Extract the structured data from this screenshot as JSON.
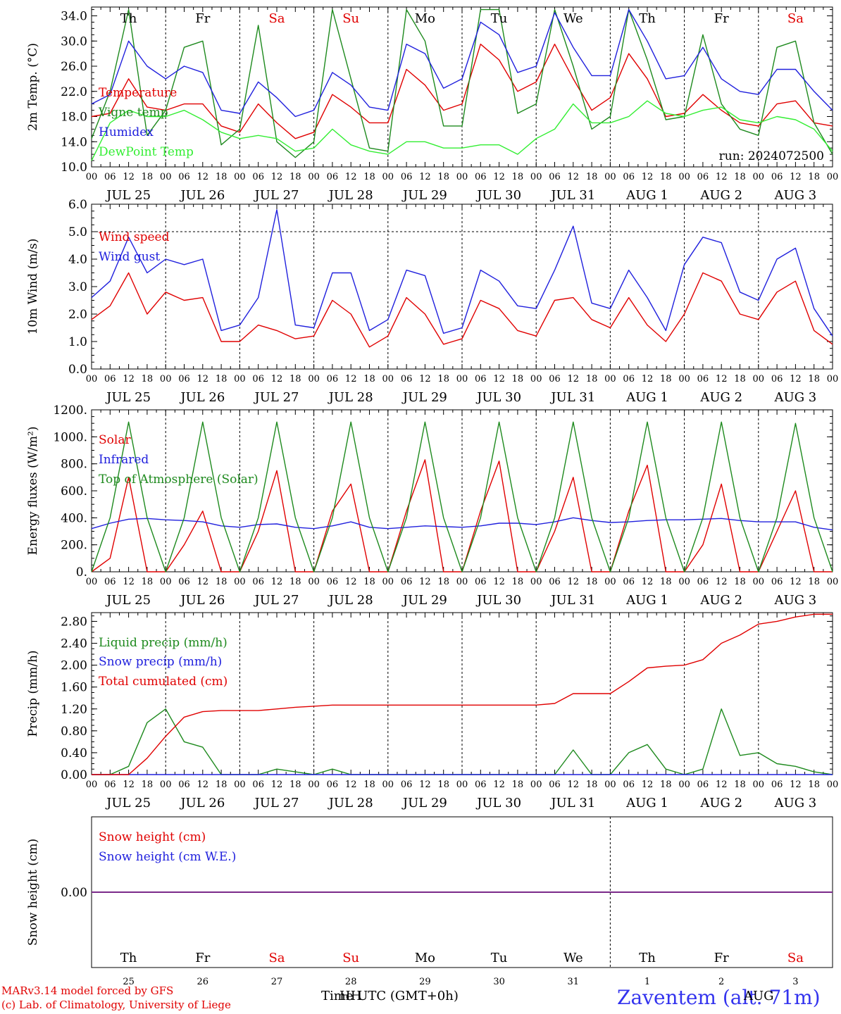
{
  "colors": {
    "red": "#e00000",
    "green": "#1e8a1e",
    "blue": "#2020dd",
    "lightgreen": "#33ee33",
    "purple": "#7a2a8a"
  },
  "days": [
    {
      "abbr": "Th",
      "date": "JUL 25",
      "num": "25",
      "weekend": false
    },
    {
      "abbr": "Fr",
      "date": "JUL 26",
      "num": "26",
      "weekend": false
    },
    {
      "abbr": "Sa",
      "date": "JUL 27",
      "num": "27",
      "weekend": true
    },
    {
      "abbr": "Su",
      "date": "JUL 28",
      "num": "28",
      "weekend": true
    },
    {
      "abbr": "Mo",
      "date": "JUL 29",
      "num": "29",
      "weekend": false
    },
    {
      "abbr": "Tu",
      "date": "JUL 30",
      "num": "30",
      "weekend": false
    },
    {
      "abbr": "We",
      "date": "JUL 31",
      "num": "31",
      "weekend": false
    },
    {
      "abbr": "Th",
      "date": "AUG  1",
      "num": "1",
      "weekend": false
    },
    {
      "abbr": "Fr",
      "date": "AUG  2",
      "num": "2",
      "weekend": false
    },
    {
      "abbr": "Sa",
      "date": "AUG  3",
      "num": "3",
      "weekend": true
    }
  ],
  "hour_ticks": [
    "00",
    "06",
    "12",
    "18"
  ],
  "hour_ticks_end": "00",
  "panels": {
    "temp": {
      "ylabel": "2m Temp. (°C)",
      "run": "run: 2024072500",
      "legend": [
        "Temperature",
        "Vigne temp",
        "Humidex",
        "DewPoint Temp"
      ]
    },
    "wind": {
      "ylabel": "10m Wind (m/s)",
      "legend": [
        "Wind speed",
        "Wind gust"
      ]
    },
    "energy": {
      "ylabel": "Energy fluxes (W/m²)",
      "legend": [
        "Solar",
        "Infrared",
        "Top of Atmosphere (Solar)"
      ]
    },
    "precip": {
      "ylabel": "Precip (mm/h)",
      "legend": [
        "Liquid precip (mm/h)",
        "Snow precip (mm/h)",
        "Total cumulated (cm)"
      ]
    },
    "snow": {
      "ylabel": "Snow height (cm)",
      "legend": [
        "Snow height (cm)",
        "Snow height (cm W.E.)"
      ]
    }
  },
  "footer": {
    "model": "MARv3.14 model forced by GFS",
    "lab": "(c) Lab. of Climatology, University of Liege",
    "xlabel": "Time UTC (GMT+0h)",
    "overlap": "HH",
    "month": "AUG",
    "station": "Zaventem (alt. 71m)"
  },
  "chart_data": [
    {
      "type": "line",
      "ylabel": "2m Temp. (°C)",
      "ylim": [
        10,
        35.4
      ],
      "yticks": [
        "10.0",
        "14.0",
        "18.0",
        "22.0",
        "26.0",
        "30.0",
        "34.0"
      ],
      "x_hours": [
        0,
        6,
        12,
        18,
        24,
        30,
        36,
        42,
        48,
        54,
        60,
        66,
        72,
        78,
        84,
        90,
        96,
        102,
        108,
        114,
        120,
        126,
        132,
        138,
        144,
        150,
        156,
        162,
        168,
        174,
        180,
        186,
        192,
        198,
        204,
        210,
        216,
        222,
        228,
        234,
        240
      ],
      "series": [
        {
          "name": "Temperature",
          "color": "red",
          "values": [
            18.0,
            18.5,
            24.0,
            19.5,
            19.0,
            20.0,
            20.0,
            16.5,
            15.5,
            20.0,
            17.0,
            14.5,
            15.5,
            21.5,
            19.5,
            17.0,
            17.0,
            25.5,
            23.0,
            19.0,
            20.0,
            29.5,
            27.0,
            22.0,
            23.5,
            29.5,
            24.0,
            19.0,
            21.0,
            28.0,
            24.0,
            18.0,
            18.5,
            21.5,
            19.0,
            17.0,
            16.5,
            20.0,
            20.5,
            17.0,
            16.5
          ]
        },
        {
          "name": "Vigne temp",
          "color": "green",
          "values": [
            14.5,
            22.0,
            35.0,
            15.0,
            19.0,
            29.0,
            30.0,
            13.5,
            16.0,
            32.5,
            14.0,
            11.5,
            14.0,
            35.0,
            24.0,
            13.0,
            12.5,
            35.0,
            30.0,
            16.5,
            16.5,
            35.0,
            35.0,
            18.5,
            20.0,
            35.0,
            26.0,
            16.0,
            18.0,
            35.0,
            27.0,
            17.5,
            18.0,
            31.0,
            20.0,
            16.0,
            15.0,
            29.0,
            30.0,
            17.0,
            12.0
          ]
        },
        {
          "name": "Humidex",
          "color": "blue",
          "values": [
            20.0,
            21.5,
            30.0,
            26.0,
            24.0,
            26.0,
            25.0,
            19.0,
            18.5,
            23.5,
            21.0,
            18.0,
            19.0,
            25.0,
            23.0,
            19.5,
            19.0,
            29.5,
            28.0,
            22.5,
            24.0,
            33.0,
            31.0,
            25.0,
            26.0,
            34.5,
            29.0,
            24.5,
            24.5,
            35.0,
            30.0,
            24.0,
            24.5,
            29.0,
            24.0,
            22.0,
            21.5,
            25.5,
            25.5,
            22.0,
            19.0
          ]
        },
        {
          "name": "DewPoint Temp",
          "color": "lightgreen",
          "values": [
            11.0,
            17.0,
            19.0,
            18.0,
            18.0,
            19.0,
            17.5,
            15.5,
            14.5,
            15.0,
            14.5,
            12.5,
            13.0,
            16.0,
            13.5,
            12.5,
            12.0,
            14.0,
            14.0,
            13.0,
            13.0,
            13.5,
            13.5,
            12.0,
            14.5,
            16.0,
            20.0,
            17.0,
            17.0,
            18.0,
            20.5,
            18.5,
            18.0,
            19.0,
            19.5,
            17.5,
            17.0,
            18.0,
            17.5,
            16.0,
            12.5
          ]
        }
      ]
    },
    {
      "type": "line",
      "ylabel": "10m Wind (m/s)",
      "ylim": [
        0,
        6.0
      ],
      "yticks": [
        "0.0",
        "1.0",
        "2.0",
        "3.0",
        "4.0",
        "5.0",
        "6.0"
      ],
      "ref_line": 5.0,
      "x_hours": [
        0,
        6,
        12,
        18,
        24,
        30,
        36,
        42,
        48,
        54,
        60,
        66,
        72,
        78,
        84,
        90,
        96,
        102,
        108,
        114,
        120,
        126,
        132,
        138,
        144,
        150,
        156,
        162,
        168,
        174,
        180,
        186,
        192,
        198,
        204,
        210,
        216,
        222,
        228,
        234,
        240
      ],
      "series": [
        {
          "name": "Wind speed",
          "color": "red",
          "values": [
            1.8,
            2.3,
            3.5,
            2.0,
            2.8,
            2.5,
            2.6,
            1.0,
            1.0,
            1.6,
            1.4,
            1.1,
            1.2,
            2.5,
            2.0,
            0.8,
            1.2,
            2.6,
            2.0,
            0.9,
            1.1,
            2.5,
            2.2,
            1.4,
            1.2,
            2.5,
            2.6,
            1.8,
            1.5,
            2.6,
            1.6,
            1.0,
            2.0,
            3.5,
            3.2,
            2.0,
            1.8,
            2.8,
            3.2,
            1.4,
            0.9
          ]
        },
        {
          "name": "Wind gust",
          "color": "blue",
          "values": [
            2.6,
            3.2,
            4.8,
            3.5,
            4.0,
            3.8,
            4.0,
            1.4,
            1.6,
            2.6,
            5.8,
            1.6,
            1.5,
            3.5,
            3.5,
            1.4,
            1.8,
            3.6,
            3.4,
            1.3,
            1.5,
            3.6,
            3.2,
            2.3,
            2.2,
            3.6,
            5.2,
            2.4,
            2.2,
            3.6,
            2.6,
            1.4,
            3.8,
            4.8,
            4.6,
            2.8,
            2.5,
            4.0,
            4.4,
            2.2,
            1.2
          ]
        }
      ]
    },
    {
      "type": "line",
      "ylabel": "Energy fluxes (W/m²)",
      "ylim": [
        0,
        1200
      ],
      "yticks": [
        "0.",
        "200.",
        "400.",
        "600.",
        "800.",
        "1000.",
        "1200."
      ],
      "x_hours": [
        0,
        6,
        12,
        18,
        24,
        30,
        36,
        42,
        48,
        54,
        60,
        66,
        72,
        78,
        84,
        90,
        96,
        102,
        108,
        114,
        120,
        126,
        132,
        138,
        144,
        150,
        156,
        162,
        168,
        174,
        180,
        186,
        192,
        198,
        204,
        210,
        216,
        222,
        228,
        234,
        240
      ],
      "series": [
        {
          "name": "Solar",
          "color": "red",
          "values": [
            0,
            100,
            700,
            0,
            0,
            200,
            450,
            0,
            0,
            300,
            750,
            0,
            0,
            450,
            650,
            0,
            0,
            450,
            830,
            0,
            0,
            450,
            820,
            0,
            0,
            300,
            700,
            0,
            0,
            450,
            790,
            0,
            0,
            200,
            650,
            0,
            0,
            300,
            600,
            0,
            0
          ]
        },
        {
          "name": "Infrared",
          "color": "blue",
          "values": [
            320,
            360,
            390,
            395,
            385,
            380,
            370,
            340,
            330,
            350,
            355,
            330,
            320,
            340,
            370,
            330,
            320,
            330,
            340,
            335,
            330,
            340,
            360,
            360,
            350,
            370,
            400,
            380,
            365,
            370,
            380,
            385,
            385,
            390,
            395,
            380,
            370,
            370,
            370,
            330,
            310
          ]
        },
        {
          "name": "Top of Atmosphere (Solar)",
          "color": "green",
          "values": [
            0,
            400,
            1110,
            400,
            0,
            400,
            1110,
            400,
            0,
            400,
            1110,
            400,
            0,
            400,
            1110,
            400,
            0,
            400,
            1110,
            400,
            0,
            400,
            1110,
            400,
            0,
            400,
            1110,
            400,
            0,
            400,
            1110,
            400,
            0,
            400,
            1110,
            400,
            0,
            400,
            1100,
            400,
            0
          ]
        }
      ]
    },
    {
      "type": "line",
      "ylabel": "Precip (mm/h)",
      "ylim": [
        0,
        2.96
      ],
      "yticks": [
        "0.00",
        "0.40",
        "0.80",
        "1.20",
        "1.60",
        "2.00",
        "2.40",
        "2.80"
      ],
      "x_hours": [
        0,
        6,
        12,
        18,
        24,
        30,
        36,
        42,
        48,
        54,
        60,
        66,
        72,
        78,
        84,
        90,
        96,
        102,
        108,
        114,
        120,
        126,
        132,
        138,
        144,
        150,
        156,
        162,
        168,
        174,
        180,
        186,
        192,
        198,
        204,
        210,
        216,
        222,
        228,
        234,
        240
      ],
      "series": [
        {
          "name": "Liquid precip (mm/h)",
          "color": "green",
          "values": [
            0,
            0,
            0.15,
            0.95,
            1.2,
            0.6,
            0.5,
            0,
            0,
            0,
            0.1,
            0.05,
            0,
            0.1,
            0,
            0,
            0,
            0,
            0,
            0,
            0,
            0,
            0,
            0,
            0,
            0,
            0.45,
            0,
            0,
            0.4,
            0.55,
            0.1,
            0,
            0.1,
            1.2,
            0.35,
            0.4,
            0.2,
            0.15,
            0.05,
            0
          ]
        },
        {
          "name": "Snow precip (mm/h)",
          "color": "blue",
          "values": [
            0,
            0,
            0,
            0,
            0,
            0,
            0,
            0,
            0,
            0,
            0,
            0,
            0,
            0,
            0,
            0,
            0,
            0,
            0,
            0,
            0,
            0,
            0,
            0,
            0,
            0,
            0,
            0,
            0,
            0,
            0,
            0,
            0,
            0,
            0,
            0,
            0,
            0,
            0,
            0,
            0
          ]
        },
        {
          "name": "Total cumulated (cm)",
          "color": "red",
          "values": [
            0,
            0,
            0,
            0.3,
            0.7,
            1.05,
            1.15,
            1.17,
            1.17,
            1.17,
            1.2,
            1.23,
            1.25,
            1.27,
            1.27,
            1.27,
            1.27,
            1.27,
            1.27,
            1.27,
            1.27,
            1.27,
            1.27,
            1.27,
            1.27,
            1.3,
            1.48,
            1.48,
            1.48,
            1.7,
            1.95,
            1.98,
            2.0,
            2.1,
            2.4,
            2.55,
            2.75,
            2.8,
            2.88,
            2.93,
            2.93
          ]
        }
      ]
    },
    {
      "type": "line",
      "ylabel": "Snow height (cm)",
      "ylim": [
        -1,
        1
      ],
      "yticks": [
        "0.00"
      ],
      "x_hours": [
        0,
        240
      ],
      "series": [
        {
          "name": "Snow height (cm)",
          "color": "red",
          "values": [
            0,
            0
          ]
        },
        {
          "name": "Snow height (cm W.E.)",
          "color": "blue",
          "values": [
            0,
            0
          ]
        }
      ]
    }
  ]
}
